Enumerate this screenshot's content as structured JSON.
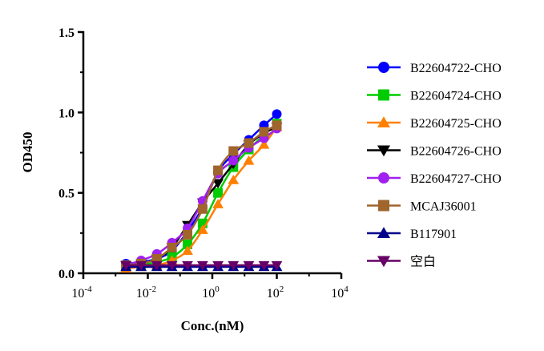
{
  "chart_data": {
    "type": "line",
    "title": "",
    "xlabel": "Conc.(nM)",
    "ylabel": "OD450",
    "x_scale": "log10",
    "xlim": [
      0.0001,
      10000
    ],
    "ylim": [
      0,
      1.5
    ],
    "x_ticks": [
      {
        "base": "10",
        "exp": "-4",
        "value": 0.0001
      },
      {
        "base": "10",
        "exp": "-2",
        "value": 0.01
      },
      {
        "base": "10",
        "exp": "0",
        "value": 1
      },
      {
        "base": "10",
        "exp": "2",
        "value": 100
      },
      {
        "base": "10",
        "exp": "4",
        "value": 10000
      }
    ],
    "y_ticks": [
      {
        "label": "0.0",
        "value": 0
      },
      {
        "label": "0.5",
        "value": 0.5
      },
      {
        "label": "1.0",
        "value": 1.0
      },
      {
        "label": "1.5",
        "value": 1.5
      }
    ],
    "grid": false,
    "legend_position": "right",
    "x": [
      0.0021,
      0.0062,
      0.019,
      0.056,
      0.17,
      0.5,
      1.5,
      4.5,
      13.5,
      40,
      100
    ],
    "series": [
      {
        "name": "B22604722-CHO",
        "color": "#0000ff",
        "marker": "circle",
        "values": [
          0.06,
          0.07,
          0.09,
          0.14,
          0.26,
          0.41,
          0.63,
          0.74,
          0.83,
          0.92,
          0.99
        ]
      },
      {
        "name": "B22604724-CHO",
        "color": "#00cc00",
        "marker": "square",
        "values": [
          0.04,
          0.05,
          0.07,
          0.1,
          0.18,
          0.31,
          0.5,
          0.66,
          0.77,
          0.86,
          0.93
        ]
      },
      {
        "name": "B22604725-CHO",
        "color": "#ff8000",
        "marker": "triangle-up",
        "values": [
          0.03,
          0.04,
          0.05,
          0.08,
          0.14,
          0.27,
          0.43,
          0.58,
          0.7,
          0.8,
          0.91
        ]
      },
      {
        "name": "B22604726-CHO",
        "color": "#000000",
        "marker": "triangle-down",
        "values": [
          0.05,
          0.06,
          0.09,
          0.16,
          0.3,
          0.44,
          0.56,
          0.68,
          0.8,
          0.87,
          0.91
        ]
      },
      {
        "name": "B22604727-CHO",
        "color": "#a020f0",
        "marker": "circle",
        "values": [
          0.05,
          0.08,
          0.12,
          0.19,
          0.28,
          0.45,
          0.62,
          0.7,
          0.78,
          0.84,
          0.9
        ]
      },
      {
        "name": "MCAJ36001",
        "color": "#a0642d",
        "marker": "square",
        "values": [
          0.05,
          0.06,
          0.09,
          0.16,
          0.24,
          0.4,
          0.64,
          0.76,
          0.81,
          0.88,
          0.92
        ]
      },
      {
        "name": "B117901",
        "color": "#00008b",
        "marker": "triangle-up",
        "values": [
          0.04,
          0.04,
          0.04,
          0.04,
          0.04,
          0.04,
          0.04,
          0.04,
          0.04,
          0.04,
          0.04
        ]
      },
      {
        "name": "空白",
        "color": "#660066",
        "marker": "triangle-down",
        "values": [
          0.05,
          0.05,
          0.05,
          0.05,
          0.05,
          0.05,
          0.05,
          0.05,
          0.05,
          0.05,
          0.05
        ]
      }
    ]
  }
}
